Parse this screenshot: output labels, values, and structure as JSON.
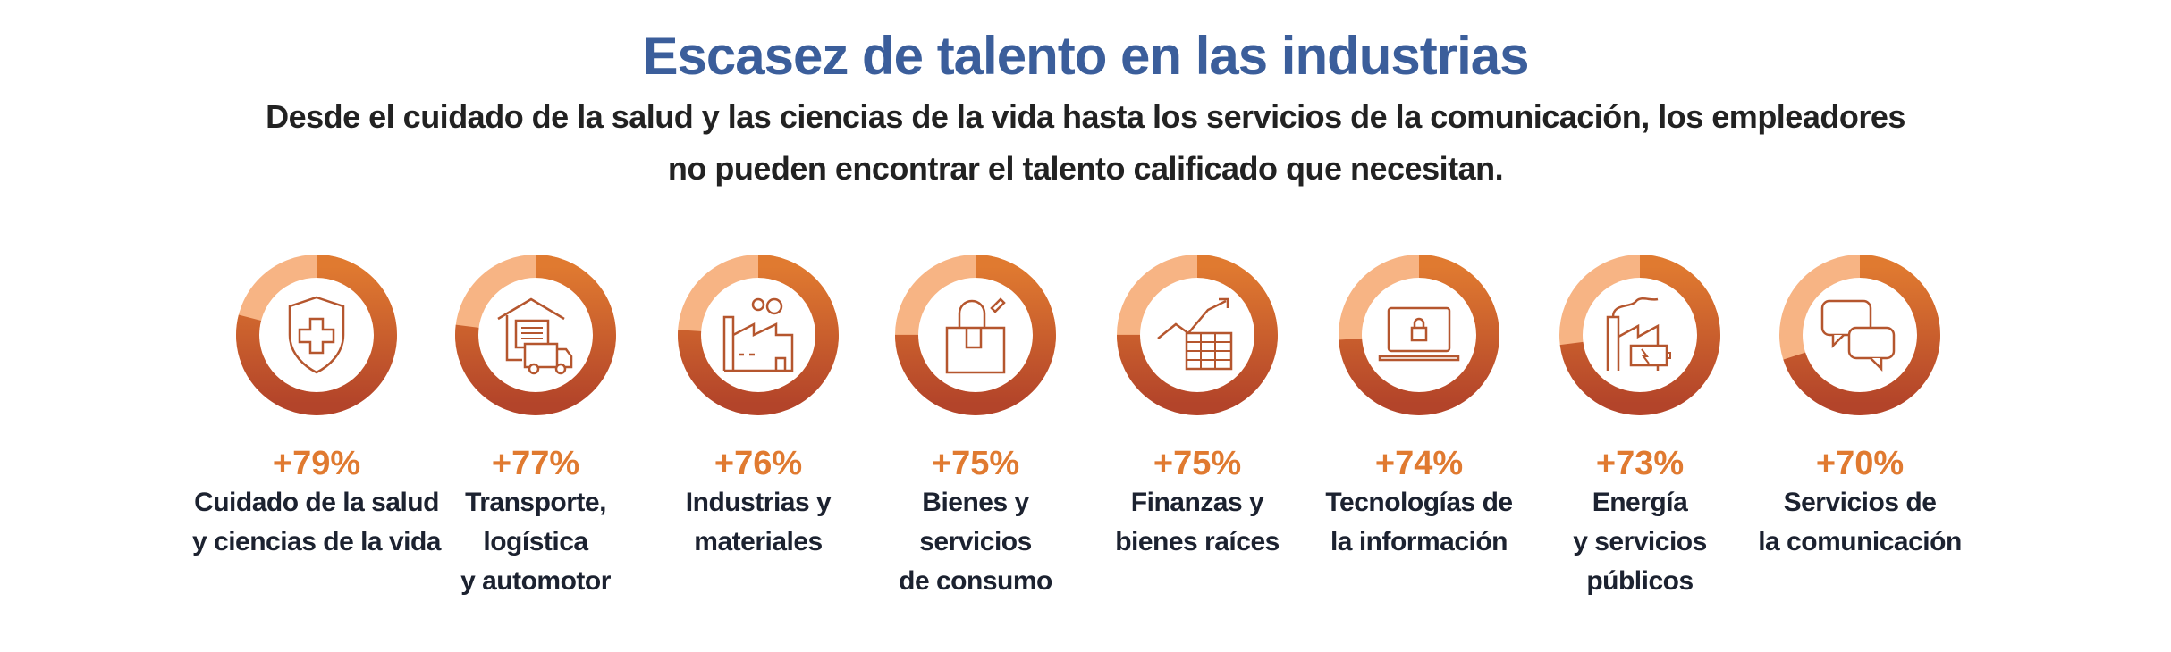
{
  "header": {
    "title": "Escasez de talento en las industrias",
    "subtitle_line1": "Desde el cuidado de la salud y las ciencias de la vida hasta los servicios de la comunicación, los empleadores",
    "subtitle_line2": "no pueden encontrar el talento calificado que necesitan."
  },
  "colors": {
    "title": "#3b5e9b",
    "accent": "#e07a30",
    "ring_dark": "#b3442a",
    "ring_light": "#f7b484",
    "icon": "#b5562e"
  },
  "chart_data": {
    "type": "pie",
    "style": "donut",
    "categories": [
      "Cuidado de la salud y ciencias de la vida",
      "Transporte, logística y automotor",
      "Industrias y materiales",
      "Bienes y servicios de consumo",
      "Finanzas y bienes raíces",
      "Tecnologías de la información",
      "Energía y servicios públicos",
      "Servicios de la comunicación"
    ],
    "values": [
      79,
      77,
      76,
      75,
      75,
      74,
      73,
      70
    ],
    "unit": "%"
  },
  "items": [
    {
      "pct": "+79%",
      "label": "Cuidado de la salud\ny ciencias de la vida",
      "icon": "health-shield-icon"
    },
    {
      "pct": "+77%",
      "label": "Transporte,\nlogística\ny automotor",
      "icon": "warehouse-truck-icon"
    },
    {
      "pct": "+76%",
      "label": "Industrias y\nmateriales",
      "icon": "factory-icon"
    },
    {
      "pct": "+75%",
      "label": "Bienes y\nservicios\nde consumo",
      "icon": "shopping-bag-icon"
    },
    {
      "pct": "+75%",
      "label": "Finanzas y\nbienes raíces",
      "icon": "finance-chart-icon"
    },
    {
      "pct": "+74%",
      "label": "Tecnologías de\nla información",
      "icon": "laptop-lock-icon"
    },
    {
      "pct": "+73%",
      "label": "Energía\ny servicios\npúblicos",
      "icon": "energy-plant-icon"
    },
    {
      "pct": "+70%",
      "label": "Servicios de\nla comunicación",
      "icon": "chat-bubbles-icon"
    }
  ]
}
